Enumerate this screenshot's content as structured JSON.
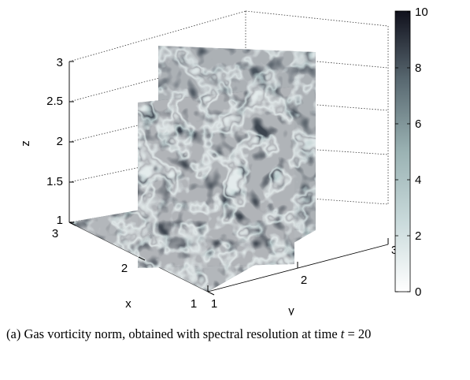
{
  "figure": {
    "axes": {
      "x": {
        "label": "x",
        "ticks": [
          "1",
          "2",
          "3"
        ]
      },
      "y": {
        "label": "y",
        "ticks": [
          "1",
          "2",
          "3"
        ]
      },
      "z": {
        "label": "z",
        "ticks": [
          "1",
          "1.5",
          "2",
          "2.5",
          "3"
        ]
      }
    },
    "colorbar": {
      "ticks": [
        "0",
        "2",
        "4",
        "6",
        "8",
        "10"
      ],
      "colors": {
        "low": "#ffffff",
        "mid": "#9ab2b3",
        "high": "#10101c"
      }
    }
  },
  "caption": {
    "text": "(a) Gas vorticity norm, obtained with spectral resolution at time",
    "var": "t",
    "eq": " = 20"
  }
}
